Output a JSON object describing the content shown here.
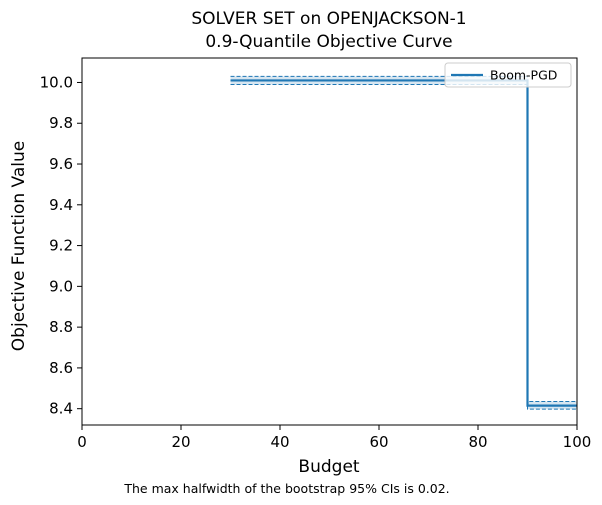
{
  "chart_data": {
    "type": "line",
    "title": "SOLVER SET on OPENJACKSON-1",
    "subtitle": "0.9-Quantile Objective Curve",
    "xlabel": "Budget",
    "ylabel": "Objective Function Value",
    "xlim": [
      0,
      100
    ],
    "ylim": [
      8.32,
      10.12
    ],
    "xticks": [
      0,
      20,
      40,
      60,
      80,
      100
    ],
    "xtick_labels": [
      "0",
      "20",
      "40",
      "60",
      "80",
      "100"
    ],
    "yticks": [
      8.4,
      8.6,
      8.8,
      9.0,
      9.2,
      9.4,
      9.6,
      9.8,
      10.0
    ],
    "ytick_labels": [
      "8.4",
      "8.6",
      "8.8",
      "9.0",
      "9.2",
      "9.4",
      "9.6",
      "9.8",
      "10.0"
    ],
    "grid": false,
    "legend_position": "top-right",
    "series": [
      {
        "name": "Boom-PGD",
        "color": "#1f77b4",
        "step": true,
        "x": [
          30,
          90,
          90,
          100
        ],
        "y": [
          10.01,
          10.01,
          8.415,
          8.415
        ],
        "ci_upper": [
          10.03,
          10.03,
          8.435,
          8.435
        ],
        "ci_lower": [
          9.99,
          9.99,
          8.398,
          8.398
        ]
      }
    ],
    "annotation": "The max halfwidth of the bootstrap 95% CIs is 0.02."
  }
}
